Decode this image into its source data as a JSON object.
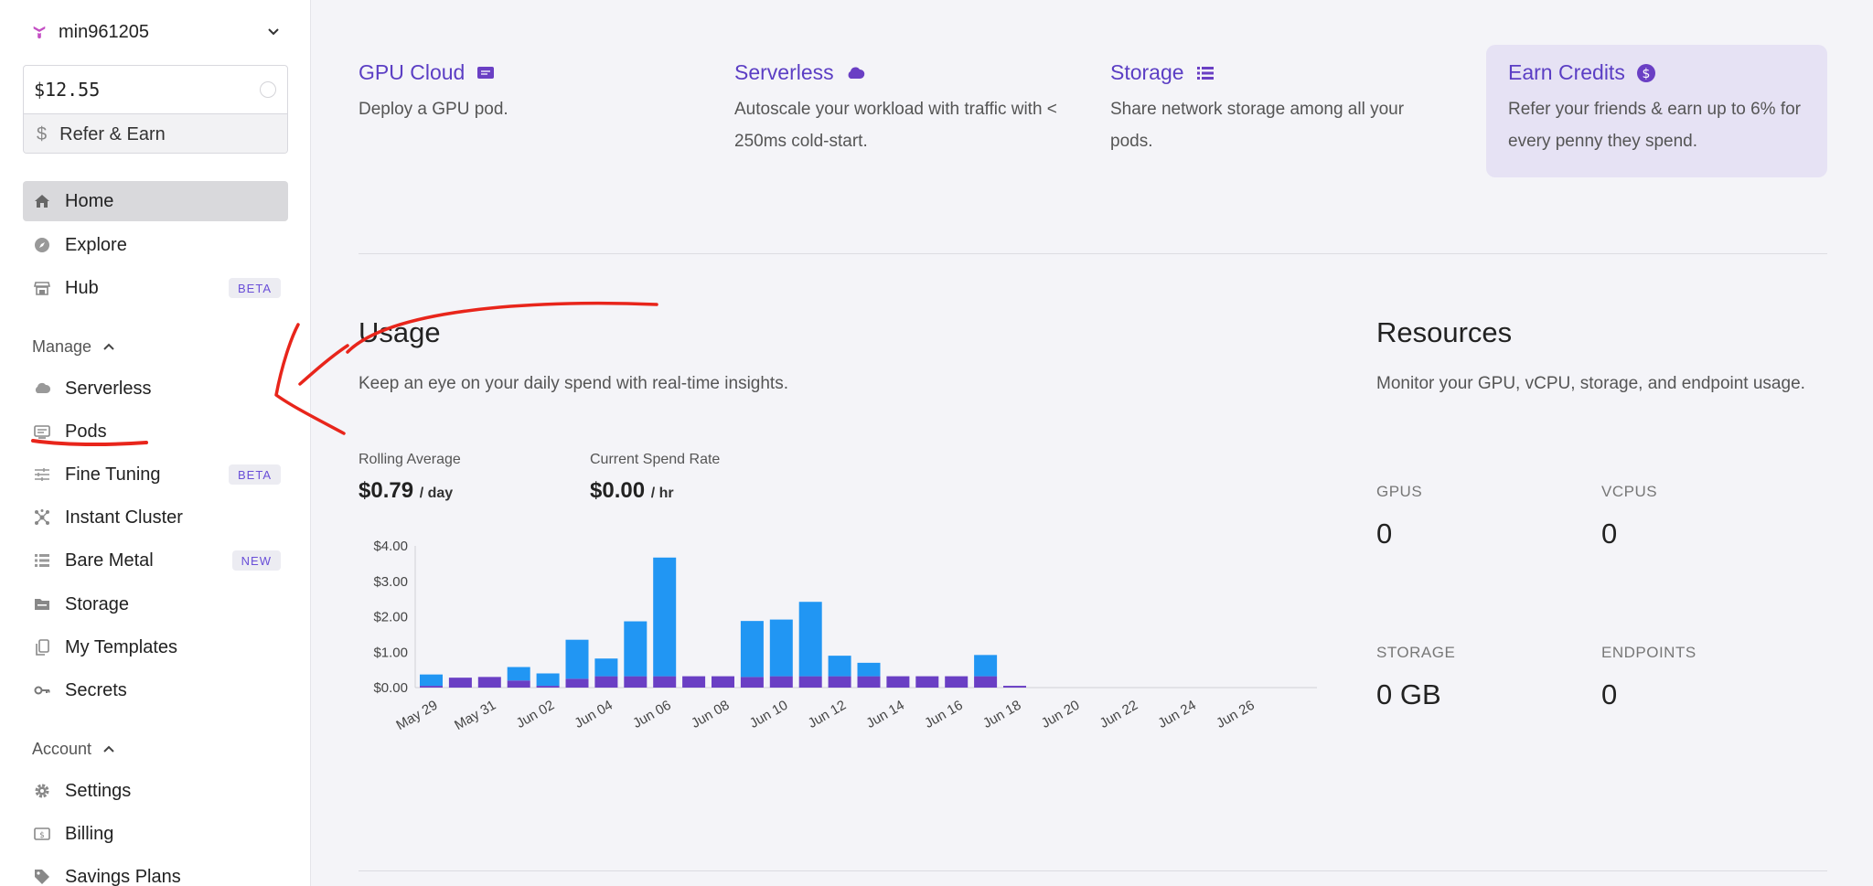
{
  "account": {
    "name": "min961205"
  },
  "balance": {
    "amount": "$12.55",
    "refer_label": "Refer & Earn",
    "refer_symbol": "$"
  },
  "nav": {
    "home": "Home",
    "explore": "Explore",
    "hub": "Hub",
    "hub_badge": "BETA",
    "manage_label": "Manage",
    "serverless": "Serverless",
    "pods": "Pods",
    "fine_tuning": "Fine Tuning",
    "fine_tuning_badge": "BETA",
    "instant_cluster": "Instant Cluster",
    "bare_metal": "Bare Metal",
    "bare_metal_badge": "NEW",
    "storage": "Storage",
    "my_templates": "My Templates",
    "secrets": "Secrets",
    "account_label": "Account",
    "settings": "Settings",
    "billing": "Billing",
    "savings_plans": "Savings Plans"
  },
  "cards": {
    "gpu_cloud": {
      "title": "GPU Cloud",
      "desc": "Deploy a GPU pod."
    },
    "serverless": {
      "title": "Serverless",
      "desc": "Autoscale your workload with traffic with < 250ms cold-start."
    },
    "storage": {
      "title": "Storage",
      "desc": "Share network storage among all your pods."
    },
    "earn": {
      "title": "Earn Credits",
      "desc": "Refer your friends & earn up to 6% for every penny they spend."
    }
  },
  "usage": {
    "title": "Usage",
    "subtitle": "Keep an eye on your daily spend with real-time insights.",
    "rolling_label": "Rolling Average",
    "rolling_value": "$0.79",
    "rolling_unit": "/ day",
    "rate_label": "Current Spend Rate",
    "rate_value": "$0.00",
    "rate_unit": "/ hr"
  },
  "resources": {
    "title": "Resources",
    "subtitle": "Monitor your GPU, vCPU, storage, and endpoint usage.",
    "gpus_label": "GPUS",
    "gpus_value": "0",
    "vcpus_label": "VCPUS",
    "vcpus_value": "0",
    "storage_label": "STORAGE",
    "storage_value": "0 GB",
    "endpoints_label": "ENDPOINTS",
    "endpoints_value": "0"
  },
  "colors": {
    "accent": "#5b3ec4",
    "bar_top": "#2196f3",
    "bar_base": "#6a3fc4",
    "annotation": "#e8251b"
  },
  "chart_data": {
    "type": "bar",
    "stacked": true,
    "ylim": [
      0,
      4
    ],
    "ytick_labels": [
      "$0.00",
      "$1.00",
      "$2.00",
      "$3.00",
      "$4.00"
    ],
    "yticks": [
      0,
      1,
      2,
      3,
      4
    ],
    "xtick_labels": [
      "May 29",
      "May 31",
      "Jun 02",
      "Jun 04",
      "Jun 06",
      "Jun 08",
      "Jun 10",
      "Jun 12",
      "Jun 14",
      "Jun 16",
      "Jun 18",
      "Jun 20",
      "Jun 22",
      "Jun 24",
      "Jun 26"
    ],
    "categories": [
      "May 29",
      "May 30",
      "May 31",
      "Jun 01",
      "Jun 02",
      "Jun 03",
      "Jun 04",
      "Jun 05",
      "Jun 06",
      "Jun 07",
      "Jun 08",
      "Jun 09",
      "Jun 10",
      "Jun 11",
      "Jun 12",
      "Jun 13",
      "Jun 14",
      "Jun 15",
      "Jun 16",
      "Jun 17",
      "Jun 18",
      "Jun 19",
      "Jun 20",
      "Jun 21",
      "Jun 22",
      "Jun 23",
      "Jun 24",
      "Jun 25",
      "Jun 26",
      "Jun 27",
      "Jun 28",
      "Jun 29",
      "Jun 30"
    ],
    "series": [
      {
        "values": [
          0.05,
          0.28,
          0.3,
          0.2,
          0.05,
          0.25,
          0.32,
          0.32,
          0.32,
          0.32,
          0.32,
          0.3,
          0.32,
          0.32,
          0.32,
          0.32,
          0.32,
          0.32,
          0.32,
          0.32,
          0.05,
          0,
          0,
          0,
          0,
          0,
          0,
          0,
          0,
          0,
          0,
          0,
          0
        ]
      },
      {
        "values": [
          0.32,
          0,
          0,
          0.38,
          0.35,
          1.1,
          0.5,
          1.55,
          3.35,
          0,
          0,
          1.58,
          1.6,
          2.1,
          0.58,
          0.38,
          0,
          0,
          0,
          0.6,
          0,
          0,
          0,
          0,
          0,
          0,
          0,
          0,
          0,
          0,
          0,
          0,
          0
        ]
      }
    ]
  }
}
